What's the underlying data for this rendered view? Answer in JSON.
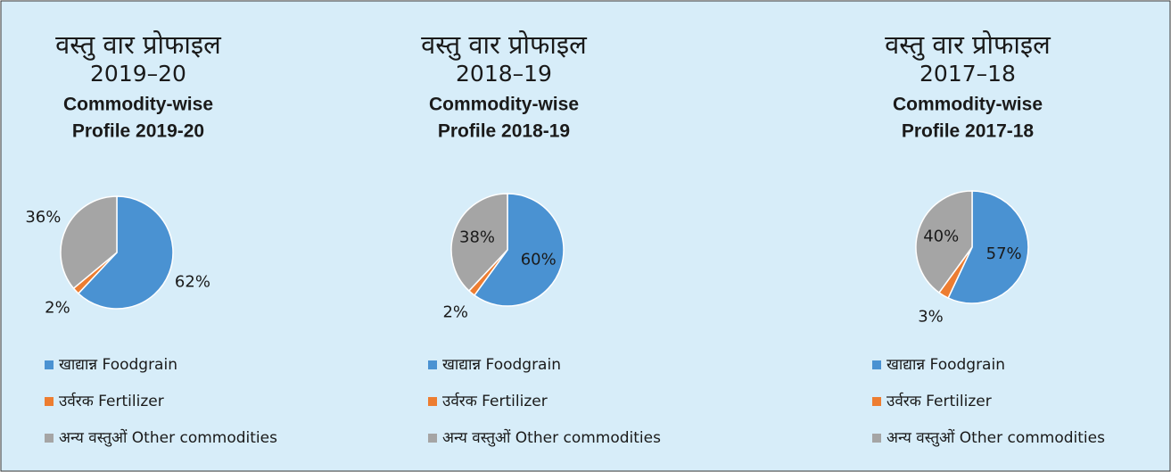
{
  "chart_data": [
    {
      "type": "pie",
      "title": "वस्तु वार प्रोफाइल",
      "title_year": "2019–20",
      "subtitle": [
        "Commodity-wise",
        "Profile 2019-20"
      ],
      "categories": [
        "खाद्यान्न Foodgrain",
        "उर्वरक Fertilizer",
        "अन्य वस्तुओं Other commodities"
      ],
      "values": [
        62,
        2,
        36
      ],
      "value_labels": [
        "62%",
        "2%",
        "36%"
      ],
      "colors": [
        "#4a92d2",
        "#ed7d31",
        "#a5a5a5"
      ],
      "label_position": [
        "outside",
        "outside",
        "outside"
      ]
    },
    {
      "type": "pie",
      "title": "वस्तु वार प्रोफाइल",
      "title_year": "2018–19",
      "subtitle": [
        "Commodity-wise",
        "Profile 2018-19"
      ],
      "categories": [
        "खाद्यान्न Foodgrain",
        "उर्वरक Fertilizer",
        "अन्य वस्तुओं Other commodities"
      ],
      "values": [
        60,
        2,
        38
      ],
      "value_labels": [
        "60%",
        "2%",
        "38%"
      ],
      "colors": [
        "#4a92d2",
        "#ed7d31",
        "#a5a5a5"
      ],
      "label_position": [
        "inside",
        "outside",
        "inside"
      ]
    },
    {
      "type": "pie",
      "title": "वस्तु वार प्रोफाइल",
      "title_year": "2017–18",
      "subtitle": [
        "Commodity-wise",
        "Profile 2017-18"
      ],
      "categories": [
        "खाद्यान्न Foodgrain",
        "उर्वरक Fertilizer",
        "अन्य वस्तुओं Other commodities"
      ],
      "values": [
        57,
        3,
        40
      ],
      "value_labels": [
        "57%",
        "3%",
        "40%"
      ],
      "colors": [
        "#4a92d2",
        "#ed7d31",
        "#a5a5a5"
      ],
      "label_position": [
        "inside",
        "outside",
        "inside"
      ]
    }
  ]
}
